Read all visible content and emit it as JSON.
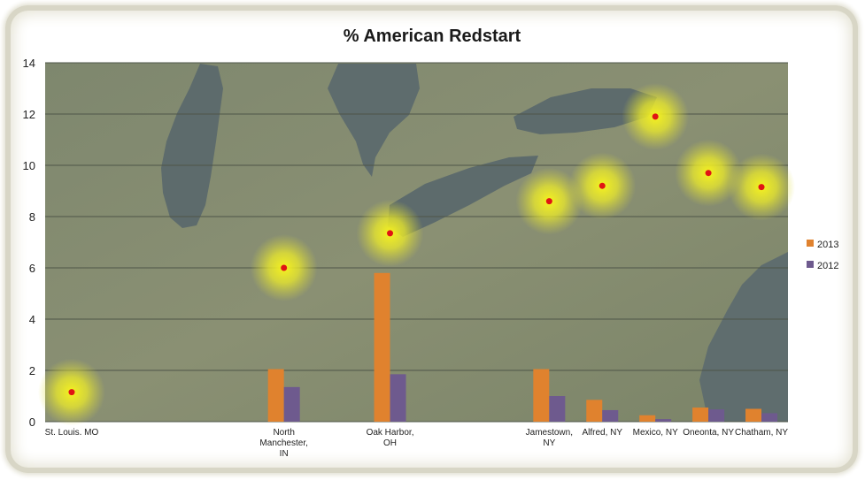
{
  "chart_data": {
    "type": "bar",
    "title": "% American Redstart",
    "categories": [
      "St. Louis. MO",
      "",
      "",
      "",
      "North Manchester, IN",
      "",
      "Oak Harbor, OH",
      "",
      "",
      "Jamestown, NY",
      "Alfred, NY",
      "Mexico, NY",
      "Oneonta, NY",
      "Chatham, NY"
    ],
    "category_lines": [
      [
        "St. Louis. MO"
      ],
      [],
      [],
      [],
      [
        "North",
        "Manchester,",
        "IN"
      ],
      [],
      [
        "Oak Harbor,",
        "OH"
      ],
      [],
      [],
      [
        "Jamestown,",
        "NY"
      ],
      [
        "Alfred, NY"
      ],
      [
        "Mexico, NY"
      ],
      [
        "Oneonta, NY"
      ],
      [
        "Chatham, NY"
      ]
    ],
    "series": [
      {
        "name": "2013",
        "color": "#e0822e",
        "values": [
          null,
          null,
          null,
          null,
          2.05,
          null,
          5.8,
          null,
          null,
          2.05,
          0.85,
          0.25,
          0.55,
          0.5
        ]
      },
      {
        "name": "2012",
        "color": "#6e5a8e",
        "values": [
          null,
          null,
          null,
          null,
          1.35,
          null,
          1.85,
          null,
          null,
          1.0,
          0.45,
          0.1,
          0.48,
          0.33
        ]
      }
    ],
    "ylim": [
      0,
      14
    ],
    "yticks": [
      "0",
      "2",
      "4",
      "6",
      "8",
      "10",
      "12",
      "14"
    ],
    "grid": true,
    "legend_position": "right",
    "background": "map of Great Lakes region",
    "markers": [
      {
        "category": "St. Louis. MO",
        "value": 1.15
      },
      {
        "category": "North Manchester, IN",
        "value": 6.0
      },
      {
        "category": "Oak Harbor, OH",
        "value": 7.35
      },
      {
        "category": "Jamestown, NY",
        "value": 8.6
      },
      {
        "category": "Alfred, NY",
        "value": 9.2
      },
      {
        "category": "Mexico, NY",
        "value": 11.9
      },
      {
        "category": "Oneonta, NY",
        "value": 9.7
      },
      {
        "category": "Chatham, NY",
        "value": 9.15
      }
    ],
    "marker_color": "#e01414",
    "glow_color": "#f4f020"
  }
}
